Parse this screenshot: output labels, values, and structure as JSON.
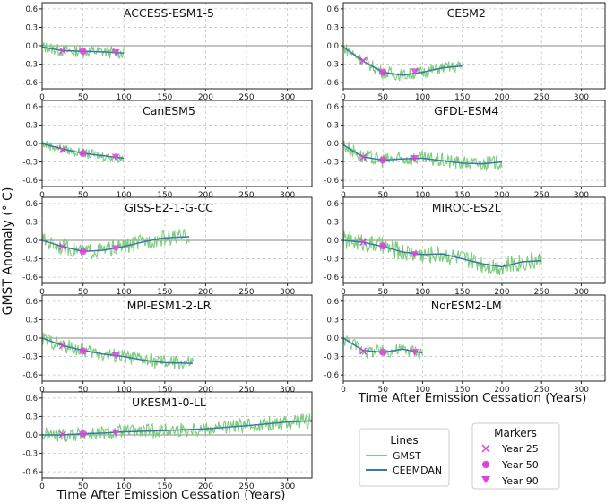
{
  "figure": {
    "ylabel": "GMST Anomaly (° C)",
    "xlabel": "Time After Emission Cessation (Years)",
    "lines_legend": {
      "title": "Lines",
      "entries": [
        {
          "label": "GMST",
          "color": "#7ccd7c"
        },
        {
          "label": "CEEMDAN",
          "color": "#3b78a8"
        }
      ]
    },
    "markers_legend": {
      "title": "Markers",
      "entries": [
        {
          "label": "Year 25",
          "marker": "x",
          "color": "#e040e0"
        },
        {
          "label": "Year 50",
          "marker": "circle",
          "color": "#e040e0"
        },
        {
          "label": "Year 90",
          "marker": "triangle-down",
          "color": "#e040e0"
        }
      ]
    }
  },
  "chart_data": [
    {
      "type": "line",
      "title": "ACCESS-ESM1-5",
      "xlim": [
        0,
        330
      ],
      "ylim": [
        -0.7,
        0.7
      ],
      "xticks": [
        0,
        50,
        100,
        150,
        200,
        250,
        300
      ],
      "yticks": [
        -0.6,
        -0.3,
        0.0,
        0.3,
        0.6
      ],
      "grid": true,
      "length": 100,
      "amp": 0.1,
      "x": [
        0,
        25,
        50,
        75,
        100
      ],
      "trend": [
        -0.02,
        -0.08,
        -0.09,
        -0.1,
        -0.12
      ],
      "markers": {
        "year25": -0.08,
        "year50": -0.09,
        "year90": -0.11
      }
    },
    {
      "type": "line",
      "title": "CESM2",
      "xlim": [
        0,
        330
      ],
      "ylim": [
        -0.7,
        0.7
      ],
      "xticks": [
        0,
        50,
        100,
        150,
        200,
        250,
        300
      ],
      "yticks": [
        -0.6,
        -0.3,
        0.0,
        0.3,
        0.6
      ],
      "grid": true,
      "length": 150,
      "amp": 0.1,
      "x": [
        0,
        25,
        50,
        75,
        100,
        125,
        150
      ],
      "trend": [
        -0.02,
        -0.25,
        -0.43,
        -0.48,
        -0.43,
        -0.36,
        -0.33
      ],
      "markers": {
        "year25": -0.24,
        "year50": -0.43,
        "year90": -0.42
      }
    },
    {
      "type": "line",
      "title": "CanESM5",
      "xlim": [
        0,
        330
      ],
      "ylim": [
        -0.7,
        0.7
      ],
      "xticks": [
        0,
        50,
        100,
        150,
        200,
        250,
        300
      ],
      "yticks": [
        -0.6,
        -0.3,
        0.0,
        0.3,
        0.6
      ],
      "grid": true,
      "length": 100,
      "amp": 0.08,
      "x": [
        0,
        25,
        50,
        75,
        100
      ],
      "trend": [
        0.0,
        -0.09,
        -0.16,
        -0.2,
        -0.24
      ],
      "markers": {
        "year25": -0.1,
        "year50": -0.16,
        "year90": -0.22
      }
    },
    {
      "type": "line",
      "title": "GFDL-ESM4",
      "xlim": [
        0,
        330
      ],
      "ylim": [
        -0.7,
        0.7
      ],
      "xticks": [
        0,
        50,
        100,
        150,
        200,
        250,
        300
      ],
      "yticks": [
        -0.6,
        -0.3,
        0.0,
        0.3,
        0.6
      ],
      "grid": true,
      "length": 200,
      "amp": 0.12,
      "x": [
        0,
        25,
        50,
        75,
        100,
        125,
        150,
        175,
        200
      ],
      "trend": [
        -0.02,
        -0.22,
        -0.27,
        -0.25,
        -0.24,
        -0.28,
        -0.32,
        -0.33,
        -0.3
      ],
      "markers": {
        "year25": -0.22,
        "year50": -0.27,
        "year90": -0.24
      }
    },
    {
      "type": "line",
      "title": "GISS-E2-1-G-CC",
      "xlim": [
        0,
        330
      ],
      "ylim": [
        -0.7,
        0.7
      ],
      "xticks": [
        0,
        50,
        100,
        150,
        200,
        250,
        300
      ],
      "yticks": [
        -0.6,
        -0.3,
        0.0,
        0.3,
        0.6
      ],
      "grid": true,
      "length": 180,
      "amp": 0.13,
      "x": [
        0,
        25,
        50,
        75,
        100,
        125,
        150,
        180
      ],
      "trend": [
        0.0,
        -0.1,
        -0.18,
        -0.16,
        -0.1,
        -0.02,
        0.04,
        0.06
      ],
      "markers": {
        "year25": -0.1,
        "year50": -0.18,
        "year90": -0.13
      }
    },
    {
      "type": "line",
      "title": "MIROC-ES2L",
      "xlim": [
        0,
        330
      ],
      "ylim": [
        -0.7,
        0.7
      ],
      "xticks": [
        0,
        50,
        100,
        150,
        200,
        250,
        300
      ],
      "yticks": [
        -0.6,
        -0.3,
        0.0,
        0.3,
        0.6
      ],
      "grid": true,
      "length": 250,
      "amp": 0.15,
      "x": [
        0,
        25,
        50,
        75,
        100,
        125,
        150,
        175,
        200,
        225,
        250
      ],
      "trend": [
        0.0,
        -0.03,
        -0.1,
        -0.19,
        -0.23,
        -0.22,
        -0.3,
        -0.38,
        -0.43,
        -0.35,
        -0.33
      ],
      "markers": {
        "year25": -0.03,
        "year50": -0.09,
        "year90": -0.23
      }
    },
    {
      "type": "line",
      "title": "MPI-ESM1-2-LR",
      "xlim": [
        0,
        330
      ],
      "ylim": [
        -0.7,
        0.7
      ],
      "xticks": [
        0,
        50,
        100,
        150,
        200,
        250,
        300
      ],
      "yticks": [
        -0.6,
        -0.3,
        0.0,
        0.3,
        0.6
      ],
      "grid": true,
      "length": 185,
      "amp": 0.12,
      "x": [
        0,
        25,
        50,
        75,
        100,
        125,
        150,
        185
      ],
      "trend": [
        0.0,
        -0.12,
        -0.2,
        -0.26,
        -0.3,
        -0.36,
        -0.4,
        -0.41
      ],
      "markers": {
        "year25": -0.12,
        "year50": -0.21,
        "year90": -0.28
      }
    },
    {
      "type": "line",
      "title": "NorESM2-LM",
      "xlim": [
        0,
        330
      ],
      "ylim": [
        -0.7,
        0.7
      ],
      "xticks": [
        0,
        50,
        100,
        150,
        200,
        250,
        300
      ],
      "yticks": [
        -0.6,
        -0.3,
        0.0,
        0.3,
        0.6
      ],
      "grid": true,
      "length": 100,
      "amp": 0.11,
      "x": [
        0,
        25,
        50,
        75,
        100
      ],
      "trend": [
        0.0,
        -0.2,
        -0.23,
        -0.18,
        -0.24
      ],
      "markers": {
        "year25": -0.21,
        "year50": -0.23,
        "year90": -0.23
      }
    },
    {
      "type": "line",
      "title": "UKESM1-0-LL",
      "xlim": [
        0,
        330
      ],
      "ylim": [
        -0.7,
        0.7
      ],
      "xticks": [
        0,
        50,
        100,
        150,
        200,
        250,
        300
      ],
      "yticks": [
        -0.6,
        -0.3,
        0.0,
        0.3,
        0.6
      ],
      "grid": true,
      "length": 330,
      "amp": 0.12,
      "x": [
        0,
        25,
        50,
        75,
        100,
        150,
        200,
        250,
        300,
        330
      ],
      "trend": [
        0.0,
        0.0,
        0.02,
        0.03,
        0.05,
        0.07,
        0.1,
        0.15,
        0.21,
        0.23
      ],
      "markers": {
        "year25": 0.01,
        "year50": 0.02,
        "year90": 0.04
      }
    }
  ]
}
